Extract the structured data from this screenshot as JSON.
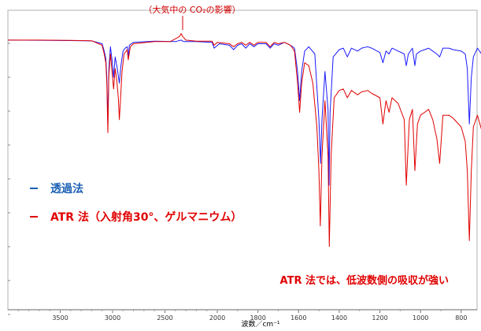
{
  "chart_data": {
    "type": "line",
    "xlabel": "波数／cm⁻¹",
    "xlim": [
      4000,
      650
    ],
    "x_reversed": true,
    "x_ticks": [
      3500,
      3000,
      2500,
      2000,
      1800,
      1600,
      1400,
      1200,
      1000,
      800
    ],
    "grid": false,
    "legend_position": "left",
    "series": [
      {
        "name": "透過法",
        "color": "#1a1aff",
        "points": [
          [
            4000,
            0.5
          ],
          [
            3700,
            0.6
          ],
          [
            3400,
            0.8
          ],
          [
            3200,
            1.0
          ],
          [
            3100,
            3
          ],
          [
            3080,
            8
          ],
          [
            3065,
            13
          ],
          [
            3055,
            26
          ],
          [
            3045,
            58
          ],
          [
            3035,
            20
          ],
          [
            3020,
            5
          ],
          [
            3005,
            14
          ],
          [
            2990,
            26
          ],
          [
            2975,
            12
          ],
          [
            2955,
            20
          ],
          [
            2935,
            30
          ],
          [
            2920,
            18
          ],
          [
            2900,
            8
          ],
          [
            2880,
            6
          ],
          [
            2860,
            5
          ],
          [
            2850,
            12
          ],
          [
            2840,
            4
          ],
          [
            2800,
            2
          ],
          [
            2600,
            1.2
          ],
          [
            2400,
            1.5
          ],
          [
            2345,
            0.5
          ],
          [
            2320,
            1.5
          ],
          [
            2200,
            1.5
          ],
          [
            2050,
            2
          ],
          [
            2030,
            6
          ],
          [
            1990,
            3
          ],
          [
            1940,
            4
          ],
          [
            1920,
            7
          ],
          [
            1900,
            4
          ],
          [
            1880,
            3
          ],
          [
            1860,
            6
          ],
          [
            1840,
            3
          ],
          [
            1820,
            5
          ],
          [
            1800,
            3
          ],
          [
            1760,
            3
          ],
          [
            1740,
            6
          ],
          [
            1720,
            3
          ],
          [
            1700,
            4
          ],
          [
            1670,
            2
          ],
          [
            1640,
            4
          ],
          [
            1620,
            6
          ],
          [
            1605,
            22
          ],
          [
            1595,
            42
          ],
          [
            1585,
            22
          ],
          [
            1570,
            8
          ],
          [
            1550,
            5
          ],
          [
            1520,
            10
          ],
          [
            1500,
            55
          ],
          [
            1492,
            85
          ],
          [
            1485,
            55
          ],
          [
            1470,
            22
          ],
          [
            1455,
            48
          ],
          [
            1450,
            100
          ],
          [
            1445,
            50
          ],
          [
            1430,
            12
          ],
          [
            1400,
            7
          ],
          [
            1380,
            6
          ],
          [
            1360,
            12
          ],
          [
            1340,
            6
          ],
          [
            1310,
            8
          ],
          [
            1290,
            6
          ],
          [
            1260,
            5
          ],
          [
            1240,
            6
          ],
          [
            1200,
            9
          ],
          [
            1185,
            16
          ],
          [
            1170,
            8
          ],
          [
            1155,
            10
          ],
          [
            1140,
            6
          ],
          [
            1110,
            8
          ],
          [
            1080,
            10
          ],
          [
            1070,
            18
          ],
          [
            1060,
            10
          ],
          [
            1040,
            6
          ],
          [
            1028,
            18
          ],
          [
            1020,
            10
          ],
          [
            1000,
            8
          ],
          [
            980,
            7
          ],
          [
            960,
            6
          ],
          [
            940,
            8
          ],
          [
            920,
            10
          ],
          [
            906,
            12
          ],
          [
            890,
            6
          ],
          [
            860,
            6
          ],
          [
            840,
            7
          ],
          [
            800,
            8
          ],
          [
            780,
            10
          ],
          [
            770,
            20
          ],
          [
            760,
            58
          ],
          [
            750,
            26
          ],
          [
            740,
            12
          ],
          [
            720,
            6
          ],
          [
            700,
            10
          ],
          [
            697,
            40
          ],
          [
            694,
            14
          ],
          [
            680,
            6
          ],
          [
            650,
            5
          ]
        ]
      },
      {
        "name": "ATR 法（入射角30°、ゲルマニウム）",
        "color": "#e00000",
        "points": [
          [
            4000,
            0.5
          ],
          [
            3700,
            0.5
          ],
          [
            3400,
            0.7
          ],
          [
            3200,
            0.9
          ],
          [
            3100,
            4
          ],
          [
            3080,
            10
          ],
          [
            3065,
            16
          ],
          [
            3055,
            30
          ],
          [
            3045,
            64
          ],
          [
            3035,
            24
          ],
          [
            3020,
            10
          ],
          [
            3005,
            22
          ],
          [
            2990,
            34
          ],
          [
            2975,
            20
          ],
          [
            2960,
            28
          ],
          [
            2945,
            40
          ],
          [
            2935,
            55
          ],
          [
            2925,
            42
          ],
          [
            2910,
            22
          ],
          [
            2890,
            10
          ],
          [
            2860,
            7
          ],
          [
            2850,
            14
          ],
          [
            2830,
            5
          ],
          [
            2800,
            3
          ],
          [
            2600,
            1.5
          ],
          [
            2450,
            1.5
          ],
          [
            2360,
            -2
          ],
          [
            2345,
            -4
          ],
          [
            2330,
            -2
          ],
          [
            2300,
            0.5
          ],
          [
            2200,
            1.2
          ],
          [
            2050,
            1.2
          ],
          [
            2030,
            4
          ],
          [
            2000,
            2
          ],
          [
            1940,
            3
          ],
          [
            1920,
            5
          ],
          [
            1900,
            3
          ],
          [
            1880,
            2
          ],
          [
            1860,
            4
          ],
          [
            1840,
            2
          ],
          [
            1820,
            4
          ],
          [
            1800,
            2
          ],
          [
            1760,
            2
          ],
          [
            1740,
            5
          ],
          [
            1720,
            2
          ],
          [
            1700,
            3
          ],
          [
            1670,
            2
          ],
          [
            1640,
            4
          ],
          [
            1620,
            8
          ],
          [
            1605,
            30
          ],
          [
            1595,
            50
          ],
          [
            1585,
            30
          ],
          [
            1570,
            16
          ],
          [
            1550,
            18
          ],
          [
            1530,
            30
          ],
          [
            1510,
            60
          ],
          [
            1500,
            90
          ],
          [
            1493,
            128
          ],
          [
            1485,
            80
          ],
          [
            1470,
            42
          ],
          [
            1455,
            80
          ],
          [
            1449,
            142
          ],
          [
            1440,
            80
          ],
          [
            1425,
            40
          ],
          [
            1400,
            35
          ],
          [
            1380,
            34
          ],
          [
            1360,
            40
          ],
          [
            1340,
            35
          ],
          [
            1310,
            38
          ],
          [
            1290,
            36
          ],
          [
            1260,
            35
          ],
          [
            1240,
            37
          ],
          [
            1200,
            40
          ],
          [
            1185,
            58
          ],
          [
            1170,
            42
          ],
          [
            1155,
            50
          ],
          [
            1140,
            40
          ],
          [
            1110,
            44
          ],
          [
            1080,
            55
          ],
          [
            1070,
            100
          ],
          [
            1055,
            55
          ],
          [
            1040,
            48
          ],
          [
            1028,
            90
          ],
          [
            1015,
            58
          ],
          [
            1000,
            52
          ],
          [
            980,
            50
          ],
          [
            960,
            48
          ],
          [
            940,
            55
          ],
          [
            920,
            68
          ],
          [
            906,
            85
          ],
          [
            890,
            52
          ],
          [
            860,
            52
          ],
          [
            840,
            54
          ],
          [
            800,
            60
          ],
          [
            780,
            70
          ],
          [
            770,
            90
          ],
          [
            760,
            138
          ],
          [
            750,
            90
          ],
          [
            740,
            60
          ],
          [
            720,
            52
          ],
          [
            700,
            62
          ],
          [
            697,
            110
          ],
          [
            692,
            62
          ],
          [
            680,
            45
          ],
          [
            650,
            40
          ]
        ]
      }
    ],
    "legend": [
      {
        "label": "透過法",
        "color": "#1a5fb4"
      },
      {
        "label": "ATR 法（入射角30°、ゲルマニウム）",
        "color": "#e00000"
      }
    ],
    "annotations": [
      {
        "text": "（大気中の CO₂の影響）",
        "x": 2345
      },
      {
        "text": "ATR 法では、低波数側の吸収が強い"
      }
    ]
  }
}
